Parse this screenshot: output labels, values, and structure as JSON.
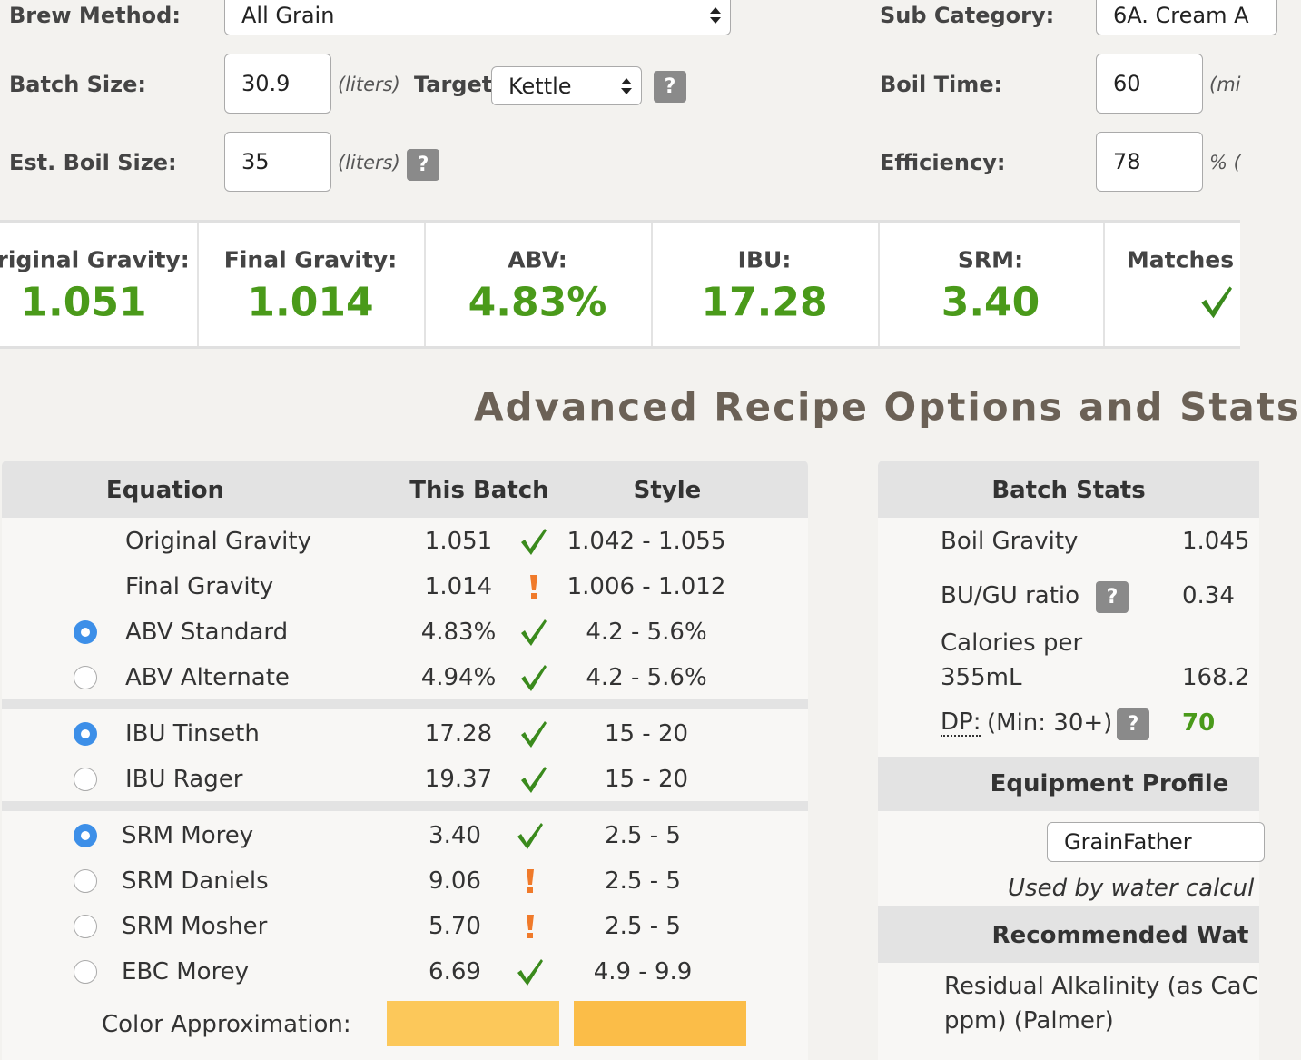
{
  "form": {
    "brew_method": {
      "label": "Brew Method:",
      "value": "All Grain"
    },
    "batch_size": {
      "label": "Batch Size:",
      "value": "30.9",
      "unit": "(liters)"
    },
    "target": {
      "label": "Target:",
      "value": "Kettle"
    },
    "est_boil_size": {
      "label": "Est. Boil Size:",
      "value": "35",
      "unit": "(liters)"
    },
    "sub_category": {
      "label": "Sub Category:",
      "value": "6A. Cream A"
    },
    "boil_time": {
      "label": "Boil Time:",
      "value": "60",
      "unit": "(mi"
    },
    "efficiency": {
      "label": "Efficiency:",
      "value": "78",
      "unit": "% ("
    }
  },
  "help_icon": "?",
  "stats": [
    {
      "label": "Original Gravity:",
      "value": "1.051"
    },
    {
      "label": "Final Gravity:",
      "value": "1.014"
    },
    {
      "label": "ABV:",
      "value": "4.83%"
    },
    {
      "label": "IBU:",
      "value": "17.28"
    },
    {
      "label": "SRM:",
      "value": "3.40"
    },
    {
      "label": "Matches",
      "value": null
    }
  ],
  "heading": "Advanced Recipe Options and Stats",
  "equation_table": {
    "headers": [
      "Equation",
      "This Batch",
      "Style"
    ],
    "groups": [
      [
        {
          "name": "Original Gravity",
          "batch": "1.051",
          "status": "ok",
          "style": "1.042 - 1.055",
          "radio": null
        },
        {
          "name": "Final Gravity",
          "batch": "1.014",
          "status": "warn",
          "style": "1.006 - 1.012",
          "radio": null
        },
        {
          "name": "ABV Standard",
          "batch": "4.83%",
          "status": "ok",
          "style": "4.2 - 5.6%",
          "radio": true
        },
        {
          "name": "ABV Alternate",
          "batch": "4.94%",
          "status": "ok",
          "style": "4.2 - 5.6%",
          "radio": false
        }
      ],
      [
        {
          "name": "IBU Tinseth",
          "batch": "17.28",
          "status": "ok",
          "style": "15 - 20",
          "radio": true
        },
        {
          "name": "IBU Rager",
          "batch": "19.37",
          "status": "ok",
          "style": "15 - 20",
          "radio": false
        }
      ],
      [
        {
          "name": "SRM Morey",
          "batch": "3.40",
          "status": "ok",
          "style": "2.5 - 5",
          "radio": true
        },
        {
          "name": "SRM Daniels",
          "batch": "9.06",
          "status": "warn",
          "style": "2.5 - 5",
          "radio": false
        },
        {
          "name": "SRM Mosher",
          "batch": "5.70",
          "status": "warn",
          "style": "2.5 - 5",
          "radio": false
        },
        {
          "name": "EBC Morey",
          "batch": "6.69",
          "status": "ok",
          "style": "4.9 - 9.9",
          "radio": false
        }
      ]
    ],
    "color_approximation": {
      "label": "Color Approximation:",
      "batch_color": "#fcc85a",
      "style_color": "#fbbd48"
    }
  },
  "batch_stats": {
    "title": "Batch Stats",
    "rows": [
      {
        "label": "Boil Gravity",
        "value": "1.045"
      },
      {
        "label": "BU/GU ratio",
        "value": "0.34",
        "help": true
      },
      {
        "label": "Calories per",
        "label2": "355mL",
        "value": "168.2"
      },
      {
        "label": "DP:",
        "label_extra": "(Min: 30+)",
        "value": "70",
        "help": true
      }
    ]
  },
  "equipment_profile": {
    "title": "Equipment Profile",
    "value": "GrainFather",
    "note": "Used by water calcul"
  },
  "recommended_water": {
    "title": "Recommended Wat",
    "lines": [
      "Residual Alkalinity (as CaC",
      "ppm) (Palmer)"
    ]
  }
}
